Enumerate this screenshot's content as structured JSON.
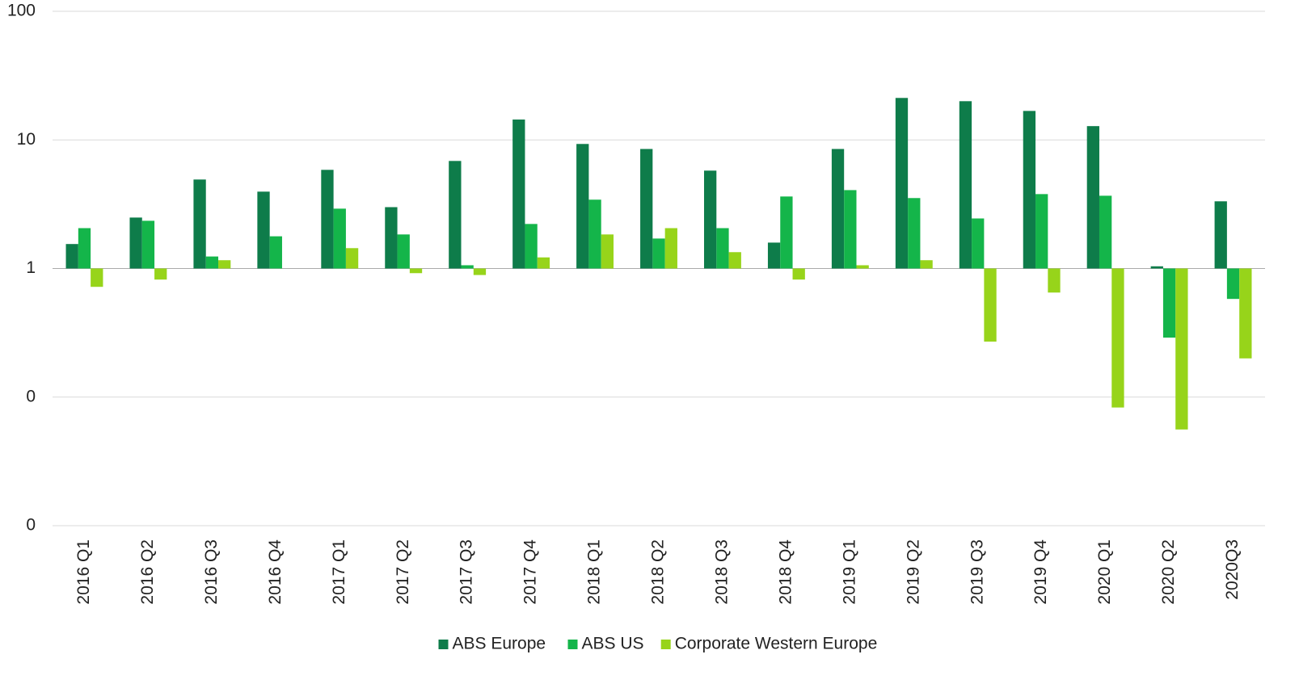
{
  "chart_data": {
    "type": "bar",
    "log_scale": true,
    "grid": true,
    "legend": "bottom",
    "categories": [
      "2016 Q1",
      "2016 Q2",
      "2016 Q3",
      "2016 Q4",
      "2017 Q1",
      "2017 Q2",
      "2017 Q3",
      "2017 Q4",
      "2018 Q1",
      "2018 Q2",
      "2018 Q3",
      "2018 Q4",
      "2019 Q1",
      "2019 Q2",
      "2019 Q3",
      "2019 Q4",
      "2020 Q1",
      "2020 Q2",
      "2020Q3"
    ],
    "series": [
      {
        "name": "ABS Europe",
        "color": "#0e7c4a",
        "values": [
          1.55,
          2.49,
          4.92,
          3.96,
          5.85,
          3.0,
          6.86,
          14.4,
          9.3,
          8.5,
          5.77,
          1.59,
          8.5,
          21.2,
          20.0,
          16.8,
          12.8,
          1.04,
          3.33
        ]
      },
      {
        "name": "ABS US",
        "color": "#14b54a",
        "values": [
          2.06,
          2.35,
          1.24,
          1.78,
          2.92,
          1.84,
          1.06,
          2.22,
          3.43,
          1.71,
          2.06,
          3.63,
          4.07,
          3.53,
          2.45,
          3.79,
          3.68,
          0.29,
          0.58
        ]
      },
      {
        "name": "Corporate Western Europe",
        "color": "#97d41a",
        "values": [
          0.72,
          0.82,
          1.16,
          null,
          1.44,
          0.92,
          0.89,
          1.22,
          1.84,
          2.06,
          1.34,
          0.82,
          1.06,
          1.16,
          0.27,
          0.65,
          0.083,
          0.056,
          0.2
        ]
      }
    ],
    "ylim": [
      0.01,
      100
    ],
    "yticks": [
      {
        "value": 0.01,
        "label": "0"
      },
      {
        "value": 0.1,
        "label": "0"
      },
      1,
      10,
      100
    ]
  }
}
